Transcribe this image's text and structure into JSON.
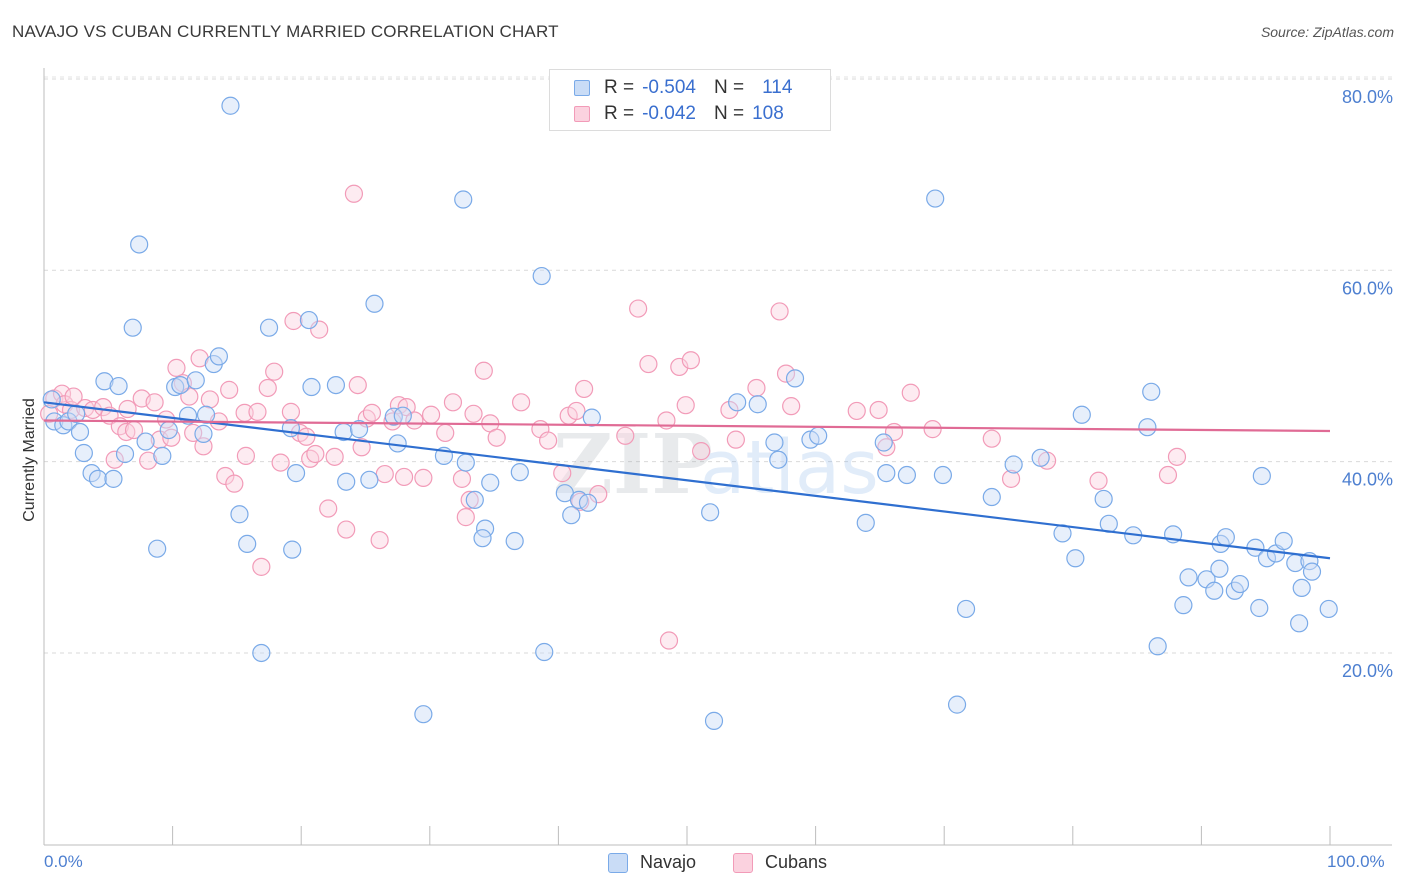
{
  "header": {
    "title": "NAVAJO VS CUBAN CURRENTLY MARRIED CORRELATION CHART",
    "source": "Source: ZipAtlas.com"
  },
  "watermark": {
    "zip": "ZIP",
    "atlas": "atlas"
  },
  "legend": {
    "rows": [
      {
        "r_label": "R =",
        "r_value": "-0.504",
        "n_label": "N =",
        "n_value": "114",
        "color": "#7aaae8"
      },
      {
        "r_label": "R =",
        "r_value": "-0.042",
        "n_label": "N =",
        "n_value": "108",
        "color": "#f29bb8"
      }
    ]
  },
  "bottom_legend": [
    {
      "label": "Navajo",
      "color": "#7aaae8"
    },
    {
      "label": "Cubans",
      "color": "#f29bb8"
    }
  ],
  "chart_data": {
    "type": "scatter",
    "title": "NAVAJO VS CUBAN CURRENTLY MARRIED CORRELATION CHART",
    "xlabel": "",
    "ylabel": "Currently Married",
    "xlim": [
      0,
      100
    ],
    "ylim": [
      0,
      84
    ],
    "x_tick_labels": [
      "0.0%",
      "100.0%"
    ],
    "y_ticks": [
      20,
      40,
      60,
      80
    ],
    "y_tick_labels": [
      "20.0%",
      "40.0%",
      "60.0%",
      "80.0%"
    ],
    "grid": true,
    "legend_position": "top-center",
    "series": [
      {
        "name": "Navajo",
        "color": "#7aaae8",
        "line_color": "#2f6fd0",
        "trend": {
          "x": [
            0,
            100
          ],
          "y": [
            46.2,
            29.9
          ]
        },
        "points": [
          [
            0.6,
            46.5
          ],
          [
            0.8,
            44.2
          ],
          [
            1.5,
            43.8
          ],
          [
            1.9,
            44.2
          ],
          [
            2.5,
            45.0
          ],
          [
            2.8,
            43.1
          ],
          [
            3.1,
            40.9
          ],
          [
            3.7,
            38.8
          ],
          [
            4.2,
            38.2
          ],
          [
            4.7,
            48.4
          ],
          [
            5.4,
            38.2
          ],
          [
            5.8,
            47.9
          ],
          [
            6.3,
            40.8
          ],
          [
            6.9,
            54.0
          ],
          [
            7.4,
            62.7
          ],
          [
            7.9,
            42.1
          ],
          [
            8.8,
            30.9
          ],
          [
            9.2,
            40.6
          ],
          [
            9.7,
            43.3
          ],
          [
            10.2,
            47.8
          ],
          [
            10.6,
            48.0
          ],
          [
            11.2,
            44.8
          ],
          [
            11.8,
            48.5
          ],
          [
            12.4,
            42.9
          ],
          [
            12.6,
            44.9
          ],
          [
            13.2,
            50.2
          ],
          [
            13.6,
            51.0
          ],
          [
            14.5,
            77.2
          ],
          [
            15.2,
            34.5
          ],
          [
            15.8,
            31.4
          ],
          [
            16.9,
            20.0
          ],
          [
            17.5,
            54.0
          ],
          [
            19.2,
            43.5
          ],
          [
            19.3,
            30.8
          ],
          [
            19.6,
            38.8
          ],
          [
            20.6,
            54.8
          ],
          [
            20.8,
            47.8
          ],
          [
            22.7,
            48.0
          ],
          [
            23.3,
            43.1
          ],
          [
            23.5,
            37.9
          ],
          [
            24.5,
            43.4
          ],
          [
            25.3,
            38.1
          ],
          [
            25.7,
            56.5
          ],
          [
            27.2,
            44.7
          ],
          [
            27.5,
            41.9
          ],
          [
            27.9,
            44.8
          ],
          [
            29.5,
            13.6
          ],
          [
            31.1,
            40.6
          ],
          [
            32.6,
            67.4
          ],
          [
            32.8,
            39.9
          ],
          [
            33.5,
            36.0
          ],
          [
            34.3,
            33.0
          ],
          [
            34.1,
            32.0
          ],
          [
            34.7,
            37.8
          ],
          [
            36.6,
            31.7
          ],
          [
            37.0,
            38.9
          ],
          [
            38.7,
            59.4
          ],
          [
            38.9,
            20.1
          ],
          [
            40.5,
            36.7
          ],
          [
            41.0,
            34.4
          ],
          [
            41.6,
            36.0
          ],
          [
            42.3,
            35.7
          ],
          [
            42.6,
            44.6
          ],
          [
            51.8,
            34.7
          ],
          [
            52.1,
            12.9
          ],
          [
            53.9,
            46.2
          ],
          [
            55.5,
            46.0
          ],
          [
            56.8,
            42.0
          ],
          [
            57.1,
            40.2
          ],
          [
            58.4,
            48.7
          ],
          [
            59.6,
            42.3
          ],
          [
            60.2,
            42.7
          ],
          [
            63.9,
            33.6
          ],
          [
            65.3,
            42.0
          ],
          [
            65.5,
            38.8
          ],
          [
            67.1,
            38.6
          ],
          [
            69.3,
            67.5
          ],
          [
            69.9,
            38.6
          ],
          [
            71.0,
            14.6
          ],
          [
            71.7,
            24.6
          ],
          [
            73.7,
            36.3
          ],
          [
            75.4,
            39.7
          ],
          [
            77.5,
            40.4
          ],
          [
            79.2,
            32.5
          ],
          [
            80.2,
            29.9
          ],
          [
            80.7,
            44.9
          ],
          [
            82.4,
            36.1
          ],
          [
            82.8,
            33.5
          ],
          [
            84.7,
            32.3
          ],
          [
            85.8,
            43.6
          ],
          [
            86.1,
            47.3
          ],
          [
            86.6,
            20.7
          ],
          [
            87.8,
            32.4
          ],
          [
            88.6,
            25.0
          ],
          [
            89.0,
            27.9
          ],
          [
            90.4,
            27.7
          ],
          [
            91.0,
            26.5
          ],
          [
            91.4,
            28.8
          ],
          [
            91.5,
            31.4
          ],
          [
            91.9,
            32.1
          ],
          [
            92.6,
            26.5
          ],
          [
            93.0,
            27.2
          ],
          [
            94.2,
            31.0
          ],
          [
            94.5,
            24.7
          ],
          [
            94.7,
            38.5
          ],
          [
            95.1,
            29.9
          ],
          [
            95.8,
            30.4
          ],
          [
            96.4,
            31.7
          ],
          [
            97.3,
            29.4
          ],
          [
            97.6,
            23.1
          ],
          [
            97.8,
            26.8
          ],
          [
            98.4,
            29.6
          ],
          [
            98.6,
            28.5
          ],
          [
            99.9,
            24.6
          ]
        ]
      },
      {
        "name": "Cubans",
        "color": "#f29bb8",
        "line_color": "#e06b95",
        "trend": {
          "x": [
            0,
            100
          ],
          "y": [
            44.3,
            43.2
          ]
        },
        "points": [
          [
            0.4,
            45.0
          ],
          [
            0.8,
            46.6
          ],
          [
            1.4,
            47.1
          ],
          [
            1.6,
            46.0
          ],
          [
            2.1,
            45.4
          ],
          [
            2.3,
            46.8
          ],
          [
            3.2,
            45.6
          ],
          [
            3.8,
            45.4
          ],
          [
            4.6,
            45.7
          ],
          [
            5.1,
            44.8
          ],
          [
            5.5,
            40.2
          ],
          [
            5.9,
            43.7
          ],
          [
            6.4,
            43.1
          ],
          [
            6.5,
            45.5
          ],
          [
            7.0,
            43.3
          ],
          [
            7.6,
            46.6
          ],
          [
            8.1,
            40.1
          ],
          [
            8.6,
            46.2
          ],
          [
            9.0,
            42.3
          ],
          [
            9.5,
            44.4
          ],
          [
            9.9,
            42.5
          ],
          [
            10.3,
            49.8
          ],
          [
            10.8,
            48.2
          ],
          [
            11.3,
            46.8
          ],
          [
            11.6,
            43.0
          ],
          [
            12.1,
            50.8
          ],
          [
            12.4,
            41.6
          ],
          [
            12.9,
            46.5
          ],
          [
            13.6,
            44.2
          ],
          [
            14.1,
            38.5
          ],
          [
            14.4,
            47.5
          ],
          [
            14.8,
            37.7
          ],
          [
            15.6,
            45.1
          ],
          [
            15.7,
            40.6
          ],
          [
            16.6,
            45.2
          ],
          [
            16.9,
            29.0
          ],
          [
            17.4,
            47.7
          ],
          [
            17.9,
            49.4
          ],
          [
            18.4,
            39.9
          ],
          [
            19.2,
            45.2
          ],
          [
            19.4,
            54.7
          ],
          [
            19.9,
            43.0
          ],
          [
            20.4,
            42.6
          ],
          [
            20.7,
            40.3
          ],
          [
            21.1,
            40.8
          ],
          [
            21.4,
            53.8
          ],
          [
            22.1,
            35.1
          ],
          [
            22.6,
            40.5
          ],
          [
            23.5,
            32.9
          ],
          [
            24.1,
            68.0
          ],
          [
            24.4,
            48.0
          ],
          [
            24.7,
            41.5
          ],
          [
            25.1,
            44.5
          ],
          [
            25.5,
            45.1
          ],
          [
            26.1,
            31.8
          ],
          [
            26.5,
            38.7
          ],
          [
            27.1,
            44.2
          ],
          [
            27.6,
            45.9
          ],
          [
            28.0,
            38.4
          ],
          [
            28.2,
            45.7
          ],
          [
            28.8,
            44.3
          ],
          [
            29.5,
            38.3
          ],
          [
            30.1,
            44.9
          ],
          [
            31.2,
            43.0
          ],
          [
            31.8,
            46.2
          ],
          [
            32.5,
            38.2
          ],
          [
            32.8,
            34.2
          ],
          [
            33.1,
            36.0
          ],
          [
            33.4,
            45.0
          ],
          [
            34.2,
            49.5
          ],
          [
            34.7,
            44.0
          ],
          [
            35.2,
            42.5
          ],
          [
            37.1,
            46.2
          ],
          [
            38.6,
            43.4
          ],
          [
            39.2,
            42.2
          ],
          [
            40.3,
            38.8
          ],
          [
            40.8,
            44.8
          ],
          [
            41.4,
            45.3
          ],
          [
            41.7,
            35.8
          ],
          [
            42.0,
            47.6
          ],
          [
            43.1,
            36.6
          ],
          [
            45.2,
            42.7
          ],
          [
            46.2,
            56.0
          ],
          [
            47.0,
            50.2
          ],
          [
            48.4,
            44.3
          ],
          [
            48.6,
            21.3
          ],
          [
            49.4,
            49.9
          ],
          [
            49.9,
            45.9
          ],
          [
            50.3,
            50.6
          ],
          [
            51.1,
            41.1
          ],
          [
            53.3,
            45.4
          ],
          [
            53.8,
            42.3
          ],
          [
            55.4,
            47.7
          ],
          [
            57.2,
            55.7
          ],
          [
            57.7,
            49.2
          ],
          [
            58.1,
            45.8
          ],
          [
            63.2,
            45.3
          ],
          [
            64.9,
            45.4
          ],
          [
            65.5,
            41.5
          ],
          [
            66.1,
            43.1
          ],
          [
            67.4,
            47.2
          ],
          [
            69.1,
            43.4
          ],
          [
            73.7,
            42.4
          ],
          [
            75.2,
            38.2
          ],
          [
            78.0,
            40.1
          ],
          [
            82.0,
            38.0
          ],
          [
            87.4,
            38.6
          ],
          [
            88.1,
            40.5
          ]
        ]
      }
    ]
  }
}
